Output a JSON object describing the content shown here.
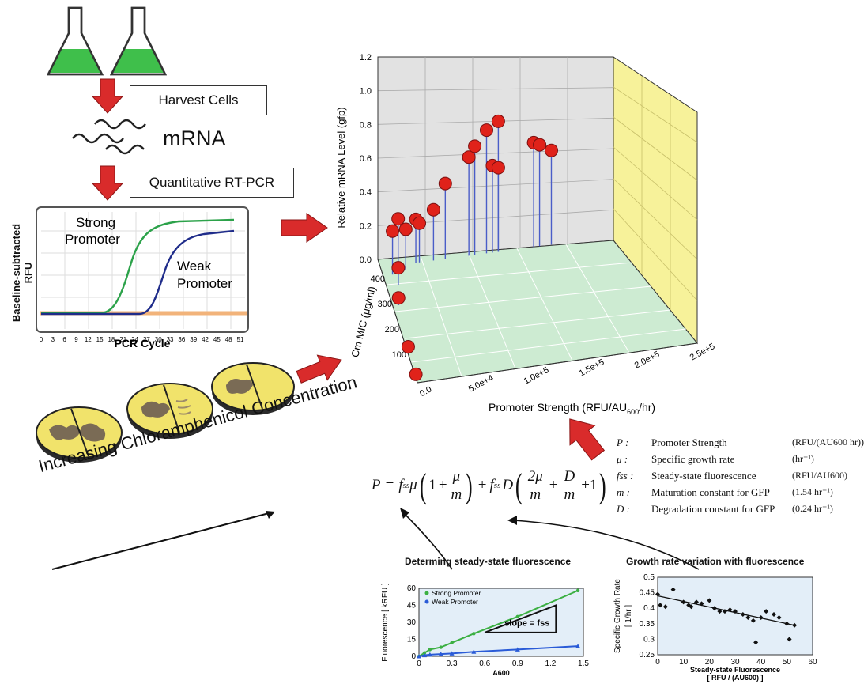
{
  "workflow": {
    "harvest": "Harvest Cells",
    "mrna": "mRNA",
    "qpcr": "Quantitative RT-PCR"
  },
  "pcr_chart": {
    "ylabel_line1": "Baseline-subtracted",
    "ylabel_line2": "RFU",
    "xlabel": "PCR Cycle",
    "ticks": [
      "0",
      "3",
      "6",
      "9",
      "12",
      "15",
      "18",
      "21",
      "24",
      "27",
      "30",
      "33",
      "36",
      "39",
      "42",
      "45",
      "48",
      "51"
    ],
    "strong_line1": "Strong",
    "strong_line2": "Promoter",
    "weak_line1": "Weak",
    "weak_line2": "Promoter",
    "colors": {
      "strong": "#2ca24a",
      "weak": "#1f2c8a",
      "baseline": "#f2b37a"
    }
  },
  "plates_caption": "Increasing Chloramphenicol Concentration",
  "plot3d": {
    "zlabel": "Relative mRNA Level (gfp)",
    "z_ticks": [
      "0.0",
      "0.2",
      "0.4",
      "0.6",
      "0.8",
      "1.0",
      "1.2"
    ],
    "ylabel": "Cm MIC (μg/ml)",
    "y_ticks": [
      "100",
      "200",
      "300",
      "400"
    ],
    "xlabel_main": "Promoter Strength (RFU/AU",
    "xlabel_sub": "600",
    "xlabel_end": "/hr)",
    "x_ticks": [
      "0.0",
      "5.0e+4",
      "1.0e+5",
      "1.5e+5",
      "2.0e+5",
      "2.5e+5"
    ]
  },
  "equation": {
    "lhs": "P",
    "eq": "=",
    "f": "f",
    "ss": "ss",
    "mu": "μ",
    "one": "1",
    "plus": "+",
    "m": "m",
    "D": "D",
    "two_mu": "2μ",
    "plus_one": "+1"
  },
  "legend": [
    {
      "sym": "P",
      "name": "Promoter Strength",
      "unit": "(RFU/(AU600 hr))"
    },
    {
      "sym": "μ",
      "name": "Specific growth rate",
      "unit": "(hr⁻¹)"
    },
    {
      "sym": "fss",
      "name": "Steady-state fluorescence",
      "unit": "(RFU/AU600)"
    },
    {
      "sym": "m",
      "name": "Maturation constant for GFP",
      "unit": "(1.54 hr⁻¹)"
    },
    {
      "sym": "D",
      "name": "Degradation constant for GFP",
      "unit": "(0.24 hr⁻¹)"
    }
  ],
  "chart_data": [
    {
      "type": "scatter",
      "title": "Determing steady-state fluorescence",
      "xlabel": "A600",
      "ylabel": "Fluorescence [ kRFU ]",
      "xlim": [
        0,
        1.5
      ],
      "ylim": [
        0,
        60
      ],
      "x_ticks": [
        "0",
        "0.3",
        "0.6",
        "0.9",
        "1.2",
        "1.5"
      ],
      "y_ticks": [
        "0",
        "15",
        "30",
        "45",
        "60"
      ],
      "annotation": "slope = fss",
      "series": [
        {
          "name": "Strong Promoter",
          "color": "#3cb043",
          "x": [
            0,
            0.05,
            0.1,
            0.2,
            0.3,
            0.5,
            0.9,
            1.45
          ],
          "y": [
            0,
            3,
            6,
            8,
            12,
            20,
            35,
            58
          ]
        },
        {
          "name": "Weak Promoter",
          "color": "#2a5bd7",
          "x": [
            0,
            0.05,
            0.1,
            0.2,
            0.3,
            0.5,
            0.9,
            1.45
          ],
          "y": [
            0,
            1,
            1.5,
            2,
            2.5,
            4,
            6,
            9
          ]
        }
      ]
    },
    {
      "type": "scatter",
      "title": "Growth rate variation with fluorescence",
      "xlabel": "Steady-state Fluorescence",
      "xlabel2": "[ RFU / (AU600) ]",
      "ylabel": "Specific Growth Rate",
      "ylabel2": "[ 1/hr ]",
      "xlim": [
        0,
        60
      ],
      "ylim": [
        0.25,
        0.5
      ],
      "x_ticks": [
        "0",
        "10",
        "20",
        "30",
        "40",
        "50",
        "60"
      ],
      "y_ticks": [
        "0.25",
        "0.3",
        "0.35",
        "0.4",
        "0.45",
        "0.5"
      ],
      "points": [
        [
          0,
          0.445
        ],
        [
          1,
          0.41
        ],
        [
          3,
          0.405
        ],
        [
          6,
          0.46
        ],
        [
          10,
          0.42
        ],
        [
          12,
          0.41
        ],
        [
          13,
          0.405
        ],
        [
          15,
          0.42
        ],
        [
          17,
          0.415
        ],
        [
          20,
          0.425
        ],
        [
          22,
          0.4
        ],
        [
          24,
          0.39
        ],
        [
          26,
          0.39
        ],
        [
          28,
          0.395
        ],
        [
          30,
          0.39
        ],
        [
          33,
          0.38
        ],
        [
          35,
          0.37
        ],
        [
          37,
          0.36
        ],
        [
          38,
          0.29
        ],
        [
          40,
          0.37
        ],
        [
          42,
          0.39
        ],
        [
          45,
          0.38
        ],
        [
          47,
          0.37
        ],
        [
          50,
          0.35
        ],
        [
          51,
          0.3
        ],
        [
          53,
          0.345
        ]
      ],
      "fit": [
        [
          0,
          0.44
        ],
        [
          53,
          0.345
        ]
      ]
    },
    {
      "type": "scatter",
      "title": "",
      "xlabel": "Promoter Strength (RFU/AU600/hr)",
      "ylabel": "Relative mRNA Level (gfp)",
      "points_3d": [
        {
          "x": 1000,
          "y": 80,
          "z": 0.0
        },
        {
          "x": 2000,
          "y": 180,
          "z": 0.0
        },
        {
          "x": 5000,
          "y": 330,
          "z": 0.05
        },
        {
          "x": 10000,
          "y": 400,
          "z": 0.12
        },
        {
          "x": 8000,
          "y": 440,
          "z": 0.3
        },
        {
          "x": 15000,
          "y": 470,
          "z": 0.32
        },
        {
          "x": 20000,
          "y": 450,
          "z": 0.28
        },
        {
          "x": 30000,
          "y": 470,
          "z": 0.3
        },
        {
          "x": 33000,
          "y": 470,
          "z": 0.27
        },
        {
          "x": 45000,
          "y": 470,
          "z": 0.35
        },
        {
          "x": 55000,
          "y": 470,
          "z": 0.52
        },
        {
          "x": 75000,
          "y": 470,
          "z": 0.68
        },
        {
          "x": 80000,
          "y": 470,
          "z": 0.75
        },
        {
          "x": 90000,
          "y": 470,
          "z": 0.85
        },
        {
          "x": 100000,
          "y": 470,
          "z": 0.9
        },
        {
          "x": 95000,
          "y": 470,
          "z": 0.6
        },
        {
          "x": 100000,
          "y": 470,
          "z": 0.58
        },
        {
          "x": 130000,
          "y": 470,
          "z": 0.72
        },
        {
          "x": 135000,
          "y": 470,
          "z": 0.7
        },
        {
          "x": 145000,
          "y": 470,
          "z": 0.65
        }
      ]
    }
  ]
}
